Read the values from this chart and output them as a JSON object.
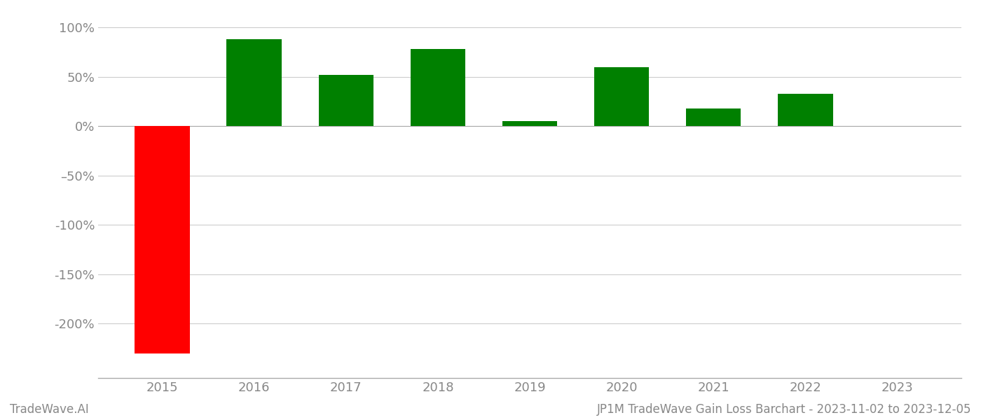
{
  "years": [
    2015,
    2016,
    2017,
    2018,
    2019,
    2020,
    2021,
    2022,
    2023
  ],
  "values": [
    -2.3,
    0.88,
    0.52,
    0.78,
    0.05,
    0.6,
    0.18,
    0.33,
    null
  ],
  "colors": [
    "#ff0000",
    "#008000",
    "#008000",
    "#008000",
    "#008000",
    "#008000",
    "#008000",
    "#008000",
    null
  ],
  "ylim": [
    -2.55,
    1.15
  ],
  "yticks": [
    1.0,
    0.5,
    0.0,
    -0.5,
    -1.0,
    -1.5,
    -2.0
  ],
  "ytick_labels": [
    "100%",
    "50%",
    "0%",
    "–50%",
    "-100%",
    "-150%",
    "-200%"
  ],
  "xlabel": "",
  "ylabel": "",
  "footer_left": "TradeWave.AI",
  "footer_right": "JP1M TradeWave Gain Loss Barchart - 2023-11-02 to 2023-12-05",
  "bar_width": 0.6,
  "background_color": "#ffffff",
  "grid_color": "#cccccc",
  "tick_label_color": "#888888",
  "footer_color": "#888888",
  "tick_fontsize": 13,
  "footer_fontsize": 12
}
